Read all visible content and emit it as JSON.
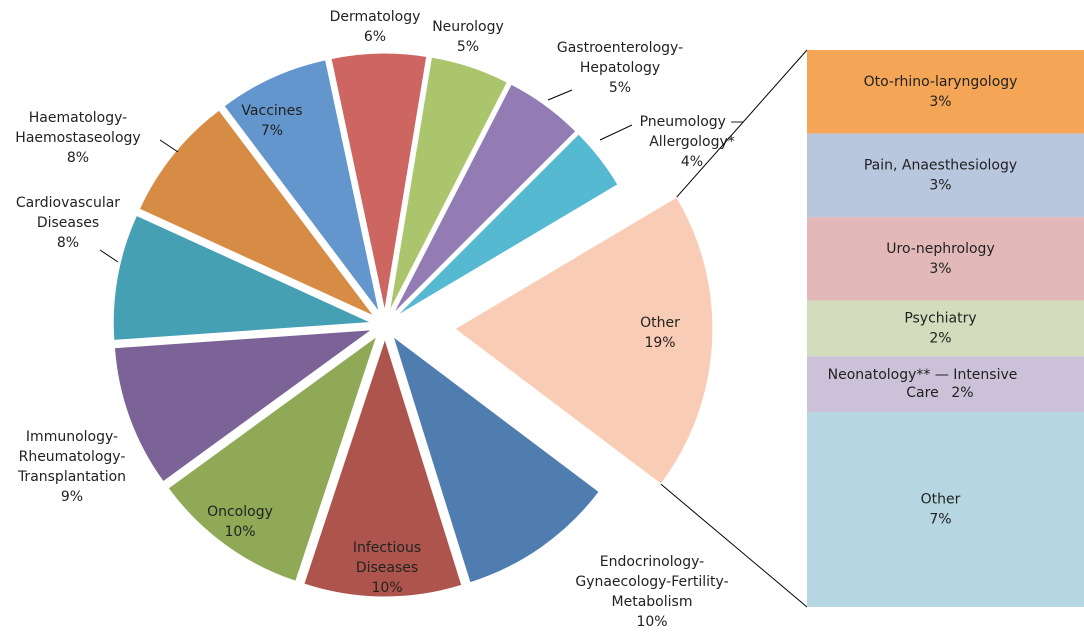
{
  "chart_data": [
    {
      "type": "pie",
      "categories": [
        "Dermatology",
        "Neurology",
        "Gastroenterology-\nHepatology",
        "Pneumology —\nAllergology*",
        "Other",
        "Endocrinology-\nGynaecology-Fertility-\nMetabolism",
        "Infectious\nDiseases",
        "Oncology",
        "Immunology-\nRheumatology-\nTransplantation",
        "Cardiovascular\nDiseases",
        "Haematology-\nHaemostaseology",
        "Vaccines"
      ],
      "values": [
        6,
        5,
        5,
        4,
        19,
        10,
        10,
        10,
        9,
        8,
        8,
        7
      ],
      "value_labels": [
        "6%",
        "5%",
        "5%",
        "4%",
        "19%",
        "10%",
        "10%",
        "10%",
        "9%",
        "8%",
        "8%",
        "7%"
      ],
      "colors": [
        "#cd6560",
        "#abc56c",
        "#937bb4",
        "#55bad1",
        "#f9ccb6",
        "#4f7db0",
        "#ad554c",
        "#8fa957",
        "#7b6397",
        "#46a0b4",
        "#d78c46",
        "#6296cc"
      ]
    },
    {
      "type": "bar",
      "categories": [
        "Oto-rhino-laryngology",
        "Pain, Anaesthesiology",
        "Uro-nephrology",
        "Psychiatry",
        "Neonatology** — Intensive\nCare",
        "Other"
      ],
      "values": [
        3,
        3,
        3,
        2,
        2,
        7
      ],
      "value_labels": [
        "3%",
        "3%",
        "3%",
        "2%",
        "2%",
        "7%"
      ],
      "colors": [
        "#f5a556",
        "#b8c6de",
        "#e2b9b8",
        "#d3ddbd",
        "#cbc1d8",
        "#b6d7e1"
      ]
    }
  ]
}
